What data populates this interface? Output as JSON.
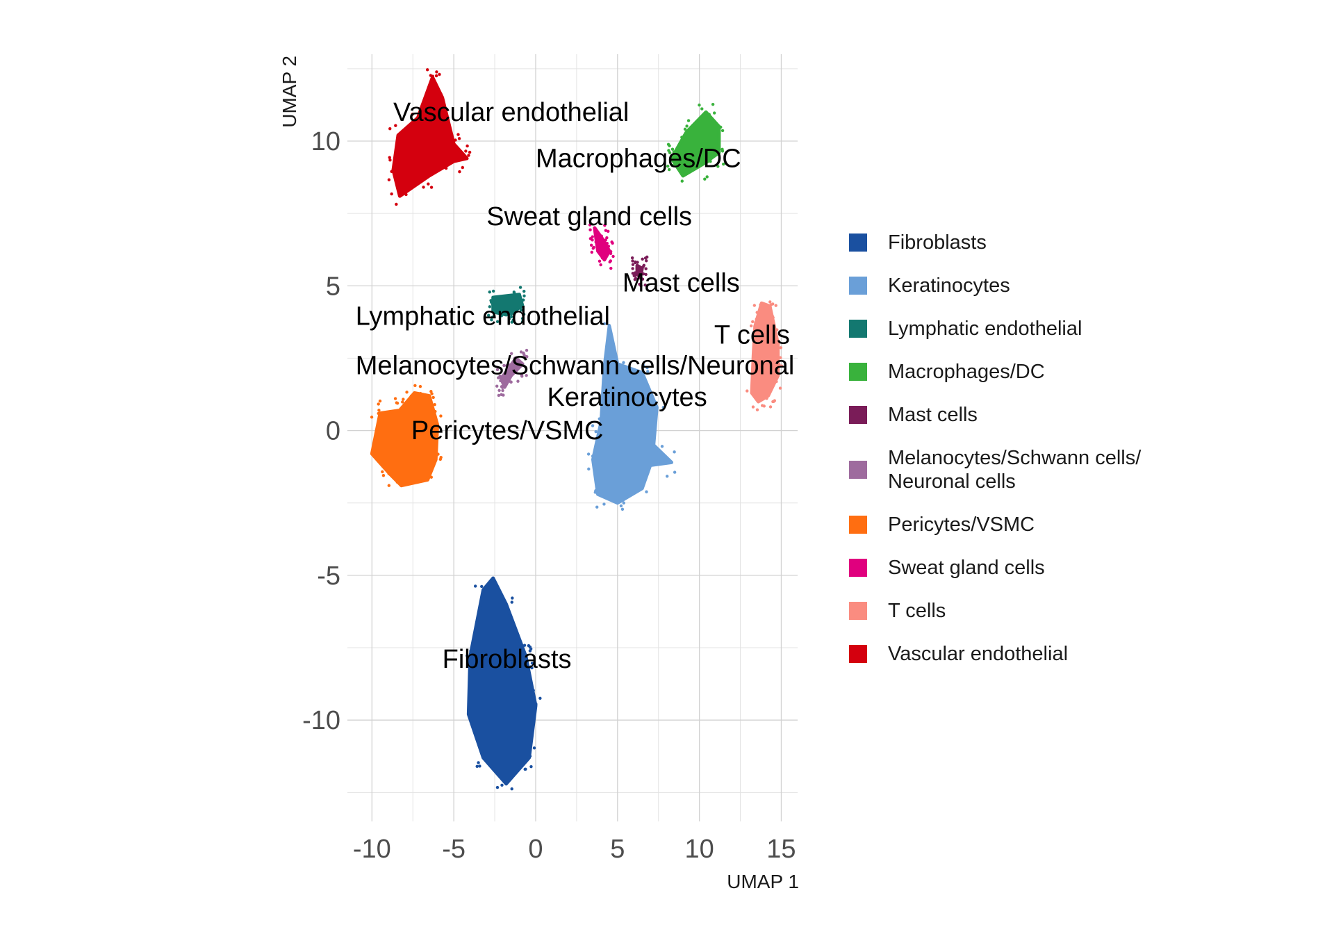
{
  "chart_data": {
    "type": "scatter",
    "title": "",
    "xlabel": "UMAP 1",
    "ylabel": "UMAP 2",
    "xlim": [
      -11.5,
      16
    ],
    "ylim": [
      -13.5,
      13
    ],
    "x_ticks": [
      -10,
      -5,
      0,
      5,
      10,
      15
    ],
    "y_ticks": [
      -10,
      -5,
      0,
      5,
      10
    ],
    "x_tick_labels": [
      "-10",
      "-5",
      "0",
      "5",
      "10",
      "15"
    ],
    "y_tick_labels": [
      "-10",
      "-5",
      "0",
      "5",
      "10"
    ],
    "grid": true,
    "legend_position": "right",
    "series": [
      {
        "name": "Fibroblasts",
        "color": "#1A50A0",
        "outline": [
          [
            -2.6,
            -5.1
          ],
          [
            -1.8,
            -6.0
          ],
          [
            -0.6,
            -7.8
          ],
          [
            0.0,
            -9.5
          ],
          [
            -0.4,
            -11.3
          ],
          [
            -1.8,
            -12.2
          ],
          [
            -3.2,
            -11.3
          ],
          [
            -4.1,
            -9.8
          ],
          [
            -4.0,
            -7.8
          ],
          [
            -3.2,
            -5.5
          ]
        ],
        "centroid": [
          -2.0,
          -9.0
        ]
      },
      {
        "name": "Keratinocytes",
        "color": "#6A9FD8",
        "outline": [
          [
            4.5,
            3.6
          ],
          [
            5.0,
            2.3
          ],
          [
            6.5,
            2.0
          ],
          [
            7.4,
            0.8
          ],
          [
            7.2,
            -0.5
          ],
          [
            8.3,
            -1.1
          ],
          [
            7.0,
            -1.2
          ],
          [
            6.5,
            -2.0
          ],
          [
            5.0,
            -2.5
          ],
          [
            3.8,
            -2.2
          ],
          [
            3.5,
            -1.0
          ],
          [
            4.0,
            0.3
          ],
          [
            4.2,
            2.2
          ]
        ],
        "centroid": [
          5.3,
          0.2
        ]
      },
      {
        "name": "Lymphatic endothelial",
        "color": "#137870",
        "outline": [
          [
            -2.6,
            4.6
          ],
          [
            -1.0,
            4.7
          ],
          [
            -0.8,
            4.3
          ],
          [
            -1.8,
            4.0
          ],
          [
            -2.6,
            4.1
          ]
        ],
        "centroid": [
          -1.8,
          4.35
        ]
      },
      {
        "name": "Macrophages/DC",
        "color": "#39B23C",
        "outline": [
          [
            10.4,
            11.0
          ],
          [
            11.2,
            10.5
          ],
          [
            11.2,
            9.6
          ],
          [
            10.2,
            9.2
          ],
          [
            9.0,
            8.8
          ],
          [
            8.3,
            9.4
          ],
          [
            9.2,
            10.3
          ]
        ],
        "centroid": [
          10.0,
          9.8
        ]
      },
      {
        "name": "Mast cells",
        "color": "#7A1C58",
        "outline": [
          [
            6.2,
            5.7
          ],
          [
            6.5,
            5.6
          ],
          [
            6.4,
            5.3
          ],
          [
            6.2,
            5.4
          ]
        ],
        "centroid": [
          6.35,
          5.5
        ]
      },
      {
        "name": "Melanocytes/Schwann cells/Neuronal cells",
        "color": "#9E6B9E",
        "outline": [
          [
            -1.2,
            2.5
          ],
          [
            -0.8,
            2.3
          ],
          [
            -1.5,
            1.9
          ],
          [
            -1.9,
            1.5
          ],
          [
            -2.1,
            1.8
          ]
        ],
        "centroid": [
          -1.5,
          2.0
        ]
      },
      {
        "name": "Pericytes/VSMC",
        "color": "#FF6E11",
        "outline": [
          [
            -7.4,
            1.3
          ],
          [
            -6.5,
            1.2
          ],
          [
            -6.0,
            0.2
          ],
          [
            -6.1,
            -1.0
          ],
          [
            -6.6,
            -1.7
          ],
          [
            -7.4,
            -1.8
          ],
          [
            -8.2,
            -1.9
          ],
          [
            -8.9,
            -1.5
          ],
          [
            -10.0,
            -0.8
          ],
          [
            -9.5,
            0.6
          ],
          [
            -8.3,
            0.7
          ]
        ],
        "centroid": [
          -7.8,
          -0.4
        ]
      },
      {
        "name": "Sweat gland cells",
        "color": "#E0007E",
        "outline": [
          [
            3.6,
            7.0
          ],
          [
            4.1,
            6.6
          ],
          [
            4.5,
            6.2
          ],
          [
            4.2,
            5.9
          ],
          [
            3.8,
            6.2
          ]
        ],
        "centroid": [
          4.0,
          6.4
        ]
      },
      {
        "name": "T cells",
        "color": "#FA8C80",
        "outline": [
          [
            13.8,
            4.4
          ],
          [
            14.3,
            4.3
          ],
          [
            14.8,
            3.0
          ],
          [
            14.8,
            1.9
          ],
          [
            14.2,
            1.2
          ],
          [
            13.6,
            1.0
          ],
          [
            13.2,
            1.3
          ],
          [
            13.3,
            2.6
          ],
          [
            13.4,
            3.6
          ]
        ],
        "centroid": [
          14.0,
          2.6
        ]
      },
      {
        "name": "Vascular endothelial",
        "color": "#D4000E",
        "outline": [
          [
            -6.3,
            12.2
          ],
          [
            -5.7,
            11.5
          ],
          [
            -5.0,
            9.9
          ],
          [
            -4.2,
            9.4
          ],
          [
            -5.0,
            9.3
          ],
          [
            -6.5,
            8.8
          ],
          [
            -8.3,
            8.1
          ],
          [
            -8.7,
            9.0
          ],
          [
            -8.4,
            10.2
          ],
          [
            -7.2,
            10.8
          ]
        ],
        "centroid": [
          -6.5,
          9.9
        ]
      }
    ],
    "annotations": [
      {
        "text": "Vascular endothelial",
        "x": -8.7,
        "y": 10.7
      },
      {
        "text": "Macrophages/DC",
        "x": 0.0,
        "y": 9.1
      },
      {
        "text": "Sweat gland cells",
        "x": -3.0,
        "y": 7.1
      },
      {
        "text": "Mast cells",
        "x": 5.3,
        "y": 4.8
      },
      {
        "text": "Lymphatic endothelial",
        "x": -11.0,
        "y": 3.65
      },
      {
        "text": "T cells",
        "x": 10.9,
        "y": 3.0
      },
      {
        "text": "Melanocytes/Schwann cells/Neuronal",
        "x": -11.0,
        "y": 1.95
      },
      {
        "text": "Keratinocytes",
        "x": 0.7,
        "y": 0.85
      },
      {
        "text": "Pericytes/VSMC",
        "x": -7.6,
        "y": -0.3
      },
      {
        "text": "Fibroblasts",
        "x": -5.7,
        "y": -8.2
      }
    ]
  },
  "legend": {
    "items": [
      {
        "label": "Fibroblasts",
        "color": "#1A50A0"
      },
      {
        "label": "Keratinocytes",
        "color": "#6A9FD8"
      },
      {
        "label": "Lymphatic endothelial",
        "color": "#137870"
      },
      {
        "label": "Macrophages/DC",
        "color": "#39B23C"
      },
      {
        "label": "Mast cells",
        "color": "#7A1C58"
      },
      {
        "label": "Melanocytes/Schwann cells/\nNeuronal cells",
        "color": "#9E6B9E"
      },
      {
        "label": "Pericytes/VSMC",
        "color": "#FF6E11"
      },
      {
        "label": "Sweat gland cells",
        "color": "#E0007E"
      },
      {
        "label": "T cells",
        "color": "#FA8C80"
      },
      {
        "label": "Vascular endothelial",
        "color": "#D4000E"
      }
    ]
  }
}
